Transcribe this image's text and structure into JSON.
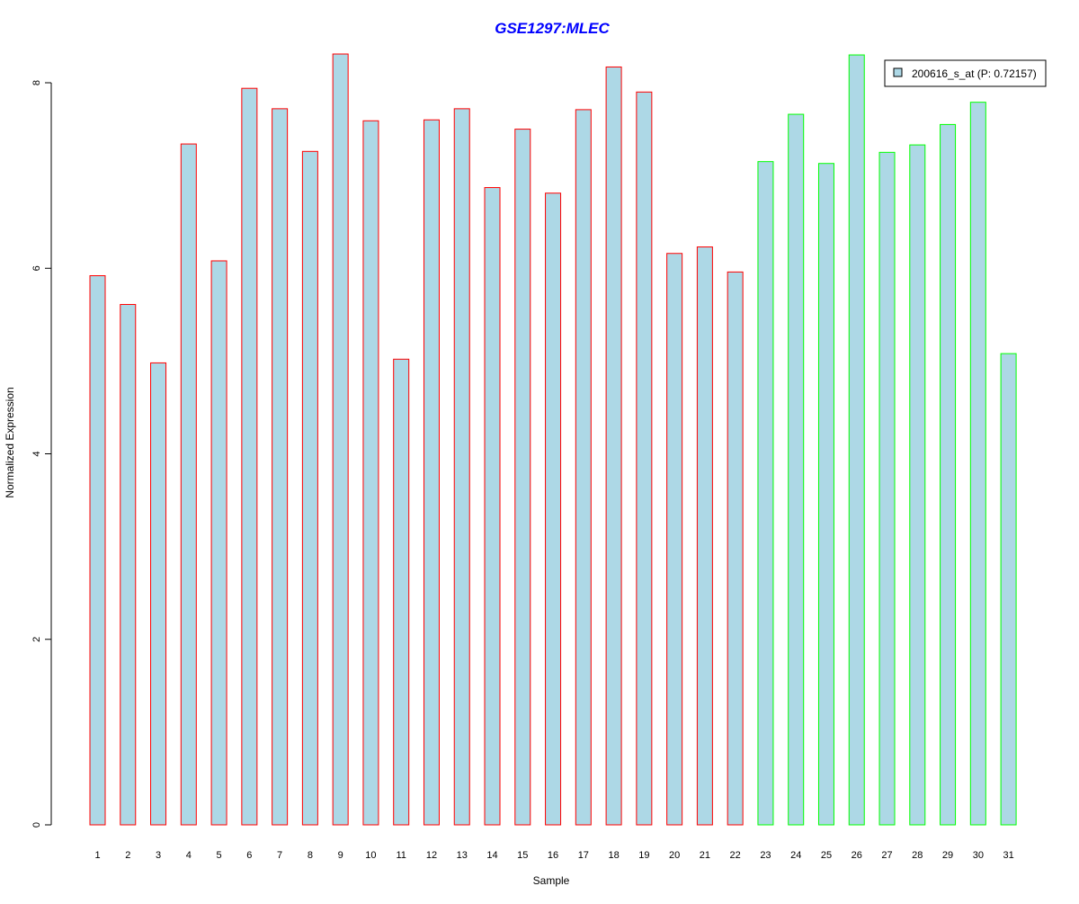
{
  "chart_data": {
    "type": "bar",
    "title": "GSE1297:MLEC",
    "xlabel": "Sample",
    "ylabel": "Normalized Expression",
    "ylim": [
      0,
      8.4
    ],
    "yticks": [
      0,
      2,
      4,
      6,
      8
    ],
    "grid": false,
    "legend_position": "top-right",
    "categories": [
      "1",
      "2",
      "3",
      "4",
      "5",
      "6",
      "7",
      "8",
      "9",
      "10",
      "11",
      "12",
      "13",
      "14",
      "15",
      "16",
      "17",
      "18",
      "19",
      "20",
      "21",
      "22",
      "23",
      "24",
      "25",
      "26",
      "27",
      "28",
      "29",
      "30",
      "31"
    ],
    "series": [
      {
        "name": "200616_s_at (P: 0.72157)",
        "values": [
          5.92,
          5.61,
          4.98,
          7.34,
          6.08,
          7.94,
          7.72,
          7.26,
          8.31,
          7.59,
          5.02,
          7.6,
          7.72,
          6.87,
          7.5,
          6.81,
          7.71,
          8.17,
          7.9,
          6.16,
          6.23,
          5.96,
          7.15,
          7.66,
          7.13,
          8.3,
          7.25,
          7.33,
          7.55,
          7.79,
          5.08
        ],
        "fill_color": "#add8e6",
        "group_colors": [
          "#ff0000",
          "#ff0000",
          "#ff0000",
          "#ff0000",
          "#ff0000",
          "#ff0000",
          "#ff0000",
          "#ff0000",
          "#ff0000",
          "#ff0000",
          "#ff0000",
          "#ff0000",
          "#ff0000",
          "#ff0000",
          "#ff0000",
          "#ff0000",
          "#ff0000",
          "#ff0000",
          "#ff0000",
          "#ff0000",
          "#ff0000",
          "#ff0000",
          "#00ff00",
          "#00ff00",
          "#00ff00",
          "#00ff00",
          "#00ff00",
          "#00ff00",
          "#00ff00",
          "#00ff00",
          "#00ff00"
        ]
      }
    ],
    "title_color": "#0000ff"
  }
}
